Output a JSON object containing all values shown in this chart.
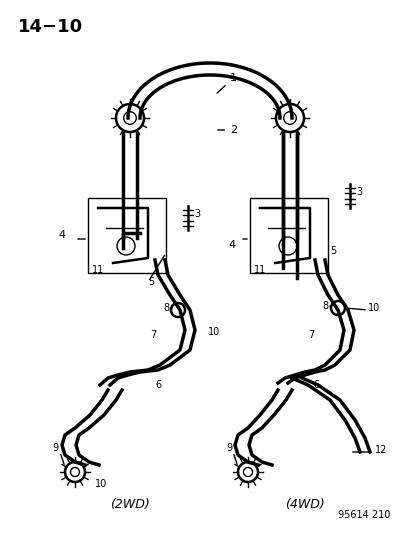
{
  "title": "14−10",
  "subtitle": "95614 210",
  "bg_color": "#ffffff",
  "fg_color": "#000000",
  "diagram_labels": {
    "2wd_label": "(2WD)",
    "4wd_label": "(4WD)"
  },
  "part_numbers": [
    1,
    2,
    3,
    4,
    5,
    6,
    7,
    8,
    9,
    10,
    11,
    12
  ],
  "figsize": [
    4.14,
    5.33
  ],
  "dpi": 100
}
